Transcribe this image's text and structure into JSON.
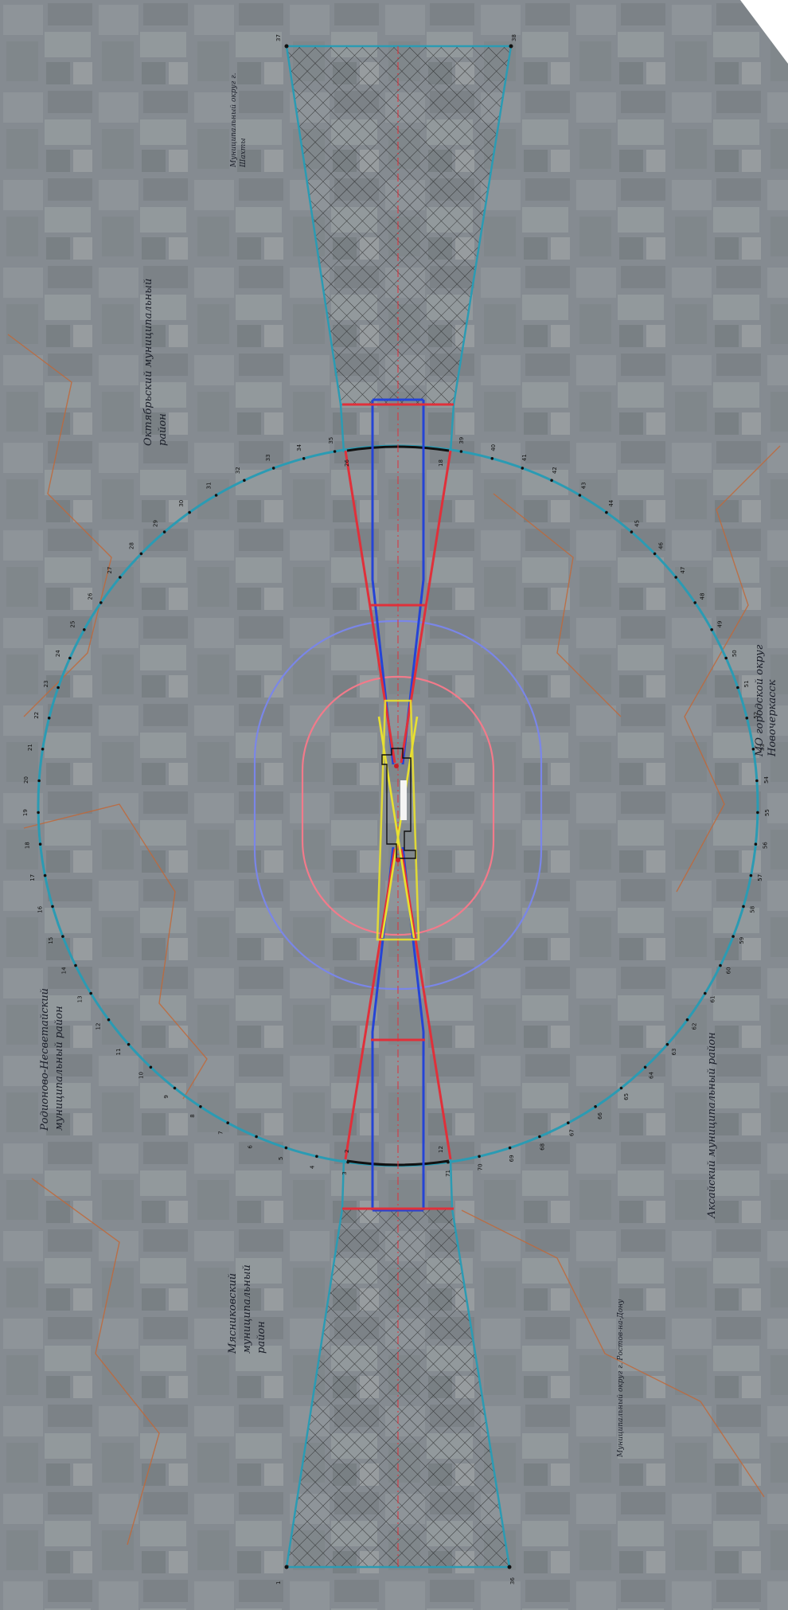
{
  "map": {
    "labels": {
      "oktyabrsky": [
        "Октябрьский муниципальный",
        "район"
      ],
      "rodionovo": [
        "Родионово-Несветайский",
        "муниципальный район"
      ],
      "myasnikovsky": [
        "Мясниковский",
        "муниципальный",
        "район"
      ],
      "novocherkassk": [
        "МО городской округ",
        "Новочеркасск"
      ],
      "aksaysky": [
        "Аксайский муниципальный район"
      ],
      "shakhty": [
        "Муниципальный округ г.",
        "Шахты"
      ],
      "rostov": [
        "Муниципальный округ г. Ростов-на-Дону"
      ]
    },
    "corner_points": {
      "tl": "37",
      "tr": "38",
      "bl": "1",
      "br": "36"
    },
    "boundary_points": [
      "26",
      "18",
      "2",
      "12"
    ],
    "circle_points": [
      "3",
      "4",
      "5",
      "6",
      "7",
      "8",
      "9",
      "10",
      "11",
      "12",
      "13",
      "14",
      "15",
      "16",
      "17",
      "18",
      "19",
      "20",
      "21",
      "22",
      "23",
      "24",
      "25",
      "26",
      "27",
      "28",
      "29",
      "30",
      "31",
      "32",
      "33",
      "34",
      "35",
      "36",
      "37",
      "38",
      "39",
      "40",
      "41",
      "42",
      "43",
      "44",
      "45",
      "46",
      "47",
      "48",
      "49",
      "50",
      "51",
      "52",
      "53",
      "54",
      "55",
      "56",
      "57",
      "58",
      "59",
      "60",
      "61",
      "62",
      "63",
      "64",
      "65",
      "66",
      "67",
      "68",
      "69",
      "70",
      "71"
    ],
    "colors": {
      "terrain": "#8a8f93",
      "zone_outline": "#2b9bb3",
      "red_zone": "#e0303a",
      "blue_zone": "#2544d6",
      "yellow_zone": "#e8e030",
      "inner_oval": "#f27a8a",
      "outer_oval": "#7a86e8",
      "admin_border": "#c0683a",
      "hatch": "#1a1a1a"
    }
  }
}
